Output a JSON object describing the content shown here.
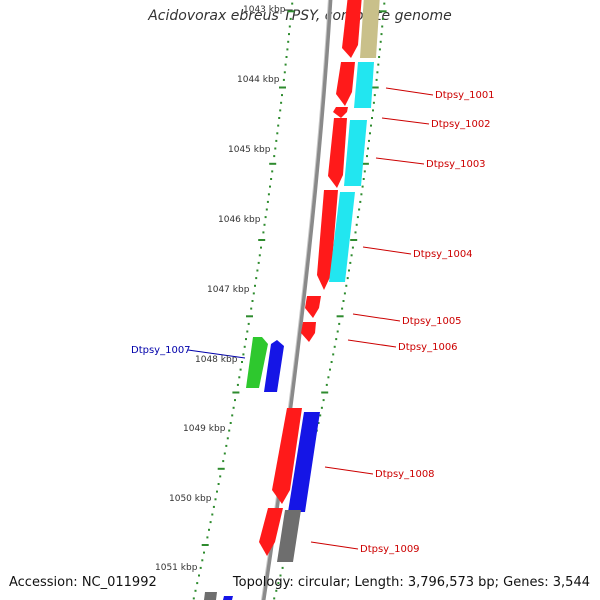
{
  "title": "Acidovorax ebreus TPSY, complete genome",
  "footer": {
    "accession": "Accession: NC_011992",
    "topology": "Topology: circular; Length: 3,796,573 bp; Genes: 3,544"
  },
  "colors": {
    "backbone": "#8a8a8a",
    "tick": "#2e8b2e",
    "kbp_label": "#333333",
    "gene_label_plus": "#cc0000",
    "gene_label_minus": "#0000aa",
    "red": "#ff1a1a",
    "cyan": "#22e6f0",
    "olive": "#c9c08a",
    "blue": "#1515e6",
    "green": "#2ec82e",
    "gray": "#6e6e6e"
  },
  "kbp_ticks": [
    "1043 kbp",
    "1044 kbp",
    "1045 kbp",
    "1046 kbp",
    "1047 kbp",
    "1048 kbp",
    "1049 kbp",
    "1050 kbp",
    "1051 kbp"
  ],
  "genes": [
    {
      "label": "Dtpsy_1001",
      "strand": "+",
      "color": "red"
    },
    {
      "label": "Dtpsy_1002",
      "strand": "+",
      "color": "red"
    },
    {
      "label": "Dtpsy_1003",
      "strand": "+",
      "color": "red"
    },
    {
      "label": "Dtpsy_1004",
      "strand": "+",
      "color": "red"
    },
    {
      "label": "Dtpsy_1005",
      "strand": "+",
      "color": "red"
    },
    {
      "label": "Dtpsy_1006",
      "strand": "+",
      "color": "red"
    },
    {
      "label": "Dtpsy_1007",
      "strand": "-",
      "color": "green"
    },
    {
      "label": "Dtpsy_1008",
      "strand": "+",
      "color": "red"
    },
    {
      "label": "Dtpsy_1009",
      "strand": "+",
      "color": "red"
    }
  ]
}
